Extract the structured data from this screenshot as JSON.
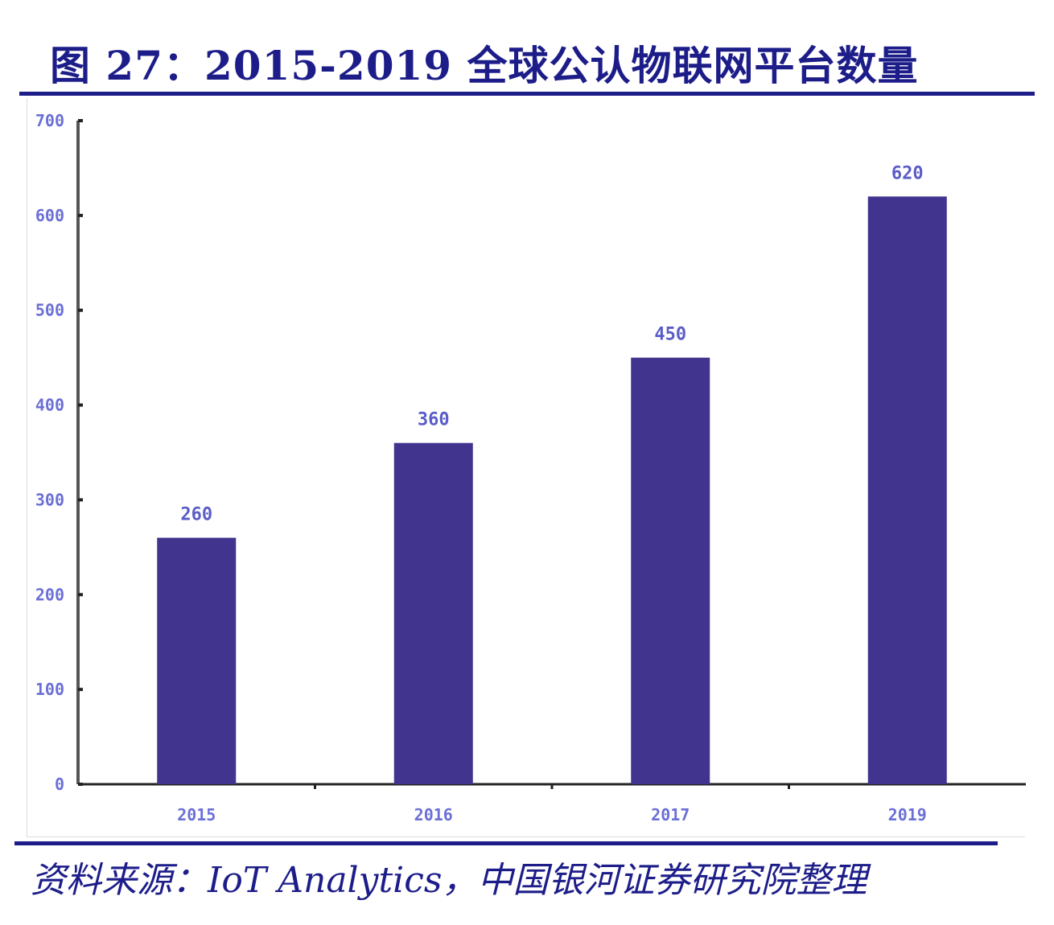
{
  "title": "图 27：2015-2019 全球公认物联网平台数量",
  "source": "资料来源：IoT Analytics，中国银河证券研究院整理",
  "colors": {
    "bar": "#41348f",
    "title": "#1d1d8a",
    "label": "#5a5cc8",
    "axis": "#333333"
  },
  "chart_data": {
    "type": "bar",
    "title": "图 27：2015-2019 全球公认物联网平台数量",
    "categories": [
      "2015",
      "2016",
      "2017",
      "2019"
    ],
    "values": [
      260,
      360,
      450,
      620
    ],
    "data_labels": [
      "260",
      "360",
      "450",
      "620"
    ],
    "ylim": [
      0,
      700
    ],
    "yticks": [
      0,
      100,
      200,
      300,
      400,
      500,
      600,
      700
    ],
    "xlabel": "",
    "ylabel": "",
    "grid": false,
    "legend": "none"
  }
}
